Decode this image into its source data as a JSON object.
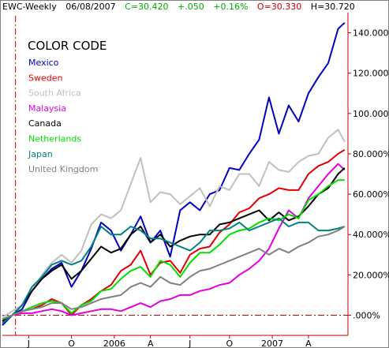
{
  "header": {
    "symbol": "EWC-Weekly",
    "date": "06/08/2007",
    "close": "C=30.420",
    "change": "+.050",
    "change_pct": "+0.16%",
    "open": "O=30.330",
    "high": "H=30.720"
  },
  "colors": {
    "header_default": "#000000",
    "header_close": "#00aa00",
    "header_open": "#d00000",
    "axis": "#c00000",
    "zero_line": "#c00000",
    "frame": "#808080"
  },
  "chart_data": {
    "type": "line",
    "title": "",
    "legend_title": "COLOR CODE",
    "legend_position": "top-left",
    "grid": false,
    "y_axis_side": "right",
    "ylim": [
      -10,
      150
    ],
    "y_ticks": [
      {
        "value": 0,
        "label": ".000%"
      },
      {
        "value": 20,
        "label": "20.000%"
      },
      {
        "value": 40,
        "label": "40.000%"
      },
      {
        "value": 60,
        "label": "60.000%"
      },
      {
        "value": 80,
        "label": "80.000%"
      },
      {
        "value": 100,
        "label": "100.000"
      },
      {
        "value": 120,
        "label": "120.000"
      },
      {
        "value": 140,
        "label": "140.000"
      }
    ],
    "xlim": [
      0,
      105
    ],
    "x_ticks": [
      {
        "value": 8,
        "label": "J"
      },
      {
        "value": 21,
        "label": "O"
      },
      {
        "value": 34,
        "label": "2006"
      },
      {
        "value": 45,
        "label": "A"
      },
      {
        "value": 57,
        "label": "J"
      },
      {
        "value": 69,
        "label": "O"
      },
      {
        "value": 82,
        "label": "2007"
      },
      {
        "value": 93,
        "label": "A"
      }
    ],
    "start_marker_x": 4,
    "x": [
      0,
      3,
      6,
      9,
      12,
      15,
      18,
      21,
      24,
      27,
      30,
      33,
      36,
      39,
      42,
      45,
      48,
      51,
      54,
      57,
      60,
      63,
      66,
      69,
      72,
      75,
      78,
      81,
      84,
      87,
      90,
      93,
      96,
      99,
      102,
      104
    ],
    "series": [
      {
        "name": "Mexico",
        "color": "#0000c0",
        "values": [
          -5,
          0,
          3,
          12,
          18,
          23,
          26,
          14,
          22,
          33,
          46,
          42,
          32,
          40,
          49,
          36,
          42,
          29,
          52,
          56,
          52,
          60,
          62,
          73,
          72,
          80,
          87,
          108,
          90,
          104,
          96,
          110,
          118,
          125,
          142,
          145
        ]
      },
      {
        "name": "Sweden",
        "color": "#e00000",
        "values": [
          -2,
          0,
          2,
          3,
          5,
          8,
          6,
          0,
          5,
          8,
          12,
          15,
          22,
          25,
          32,
          20,
          26,
          27,
          21,
          30,
          33,
          34,
          41,
          45,
          51,
          53,
          58,
          60,
          63,
          62,
          62,
          70,
          74,
          76,
          80,
          82
        ]
      },
      {
        "name": "South Africa",
        "color": "#c0c0c0",
        "values": [
          -1,
          2,
          5,
          12,
          20,
          26,
          30,
          26,
          32,
          45,
          50,
          48,
          52,
          65,
          78,
          56,
          61,
          60,
          55,
          59,
          63,
          54,
          64,
          62,
          70,
          70,
          64,
          76,
          72,
          71,
          76,
          79,
          80,
          88,
          92,
          86
        ]
      },
      {
        "name": "Malaysia",
        "color": "#e000e0",
        "values": [
          -2,
          0,
          1,
          1,
          2,
          3,
          2,
          0,
          1,
          2,
          3,
          3,
          2,
          4,
          6,
          4,
          7,
          8,
          10,
          10,
          12,
          13,
          15,
          16,
          20,
          23,
          27,
          33,
          43,
          52,
          48,
          58,
          64,
          70,
          75,
          72
        ]
      },
      {
        "name": "Canada",
        "color": "#000000",
        "values": [
          -3,
          0,
          5,
          12,
          18,
          22,
          25,
          18,
          22,
          28,
          34,
          31,
          33,
          40,
          44,
          36,
          40,
          34,
          37,
          39,
          40,
          40,
          45,
          46,
          48,
          50,
          52,
          47,
          51,
          47,
          49,
          54,
          60,
          63,
          70,
          73
        ]
      },
      {
        "name": "Netherlands",
        "color": "#00e000",
        "values": [
          -2,
          0,
          2,
          4,
          6,
          7,
          6,
          1,
          5,
          7,
          12,
          13,
          18,
          22,
          24,
          19,
          27,
          25,
          19,
          26,
          31,
          31,
          35,
          40,
          42,
          43,
          46,
          48,
          47,
          50,
          48,
          57,
          60,
          64,
          67,
          67
        ]
      },
      {
        "name": "Japan",
        "color": "#008080",
        "values": [
          -4,
          0,
          5,
          14,
          19,
          25,
          27,
          25,
          27,
          34,
          44,
          40,
          40,
          44,
          42,
          38,
          38,
          36,
          34,
          32,
          36,
          42,
          42,
          43,
          46,
          42,
          44,
          46,
          48,
          44,
          46,
          46,
          42,
          42,
          43,
          44
        ]
      },
      {
        "name": "United Kingdom",
        "color": "#808080",
        "values": [
          -2,
          0,
          2,
          3,
          4,
          6,
          6,
          3,
          4,
          6,
          8,
          9,
          10,
          14,
          16,
          14,
          19,
          16,
          15,
          19,
          22,
          23,
          25,
          27,
          29,
          31,
          33,
          30,
          33,
          31,
          34,
          36,
          39,
          40,
          42,
          44
        ]
      }
    ]
  }
}
